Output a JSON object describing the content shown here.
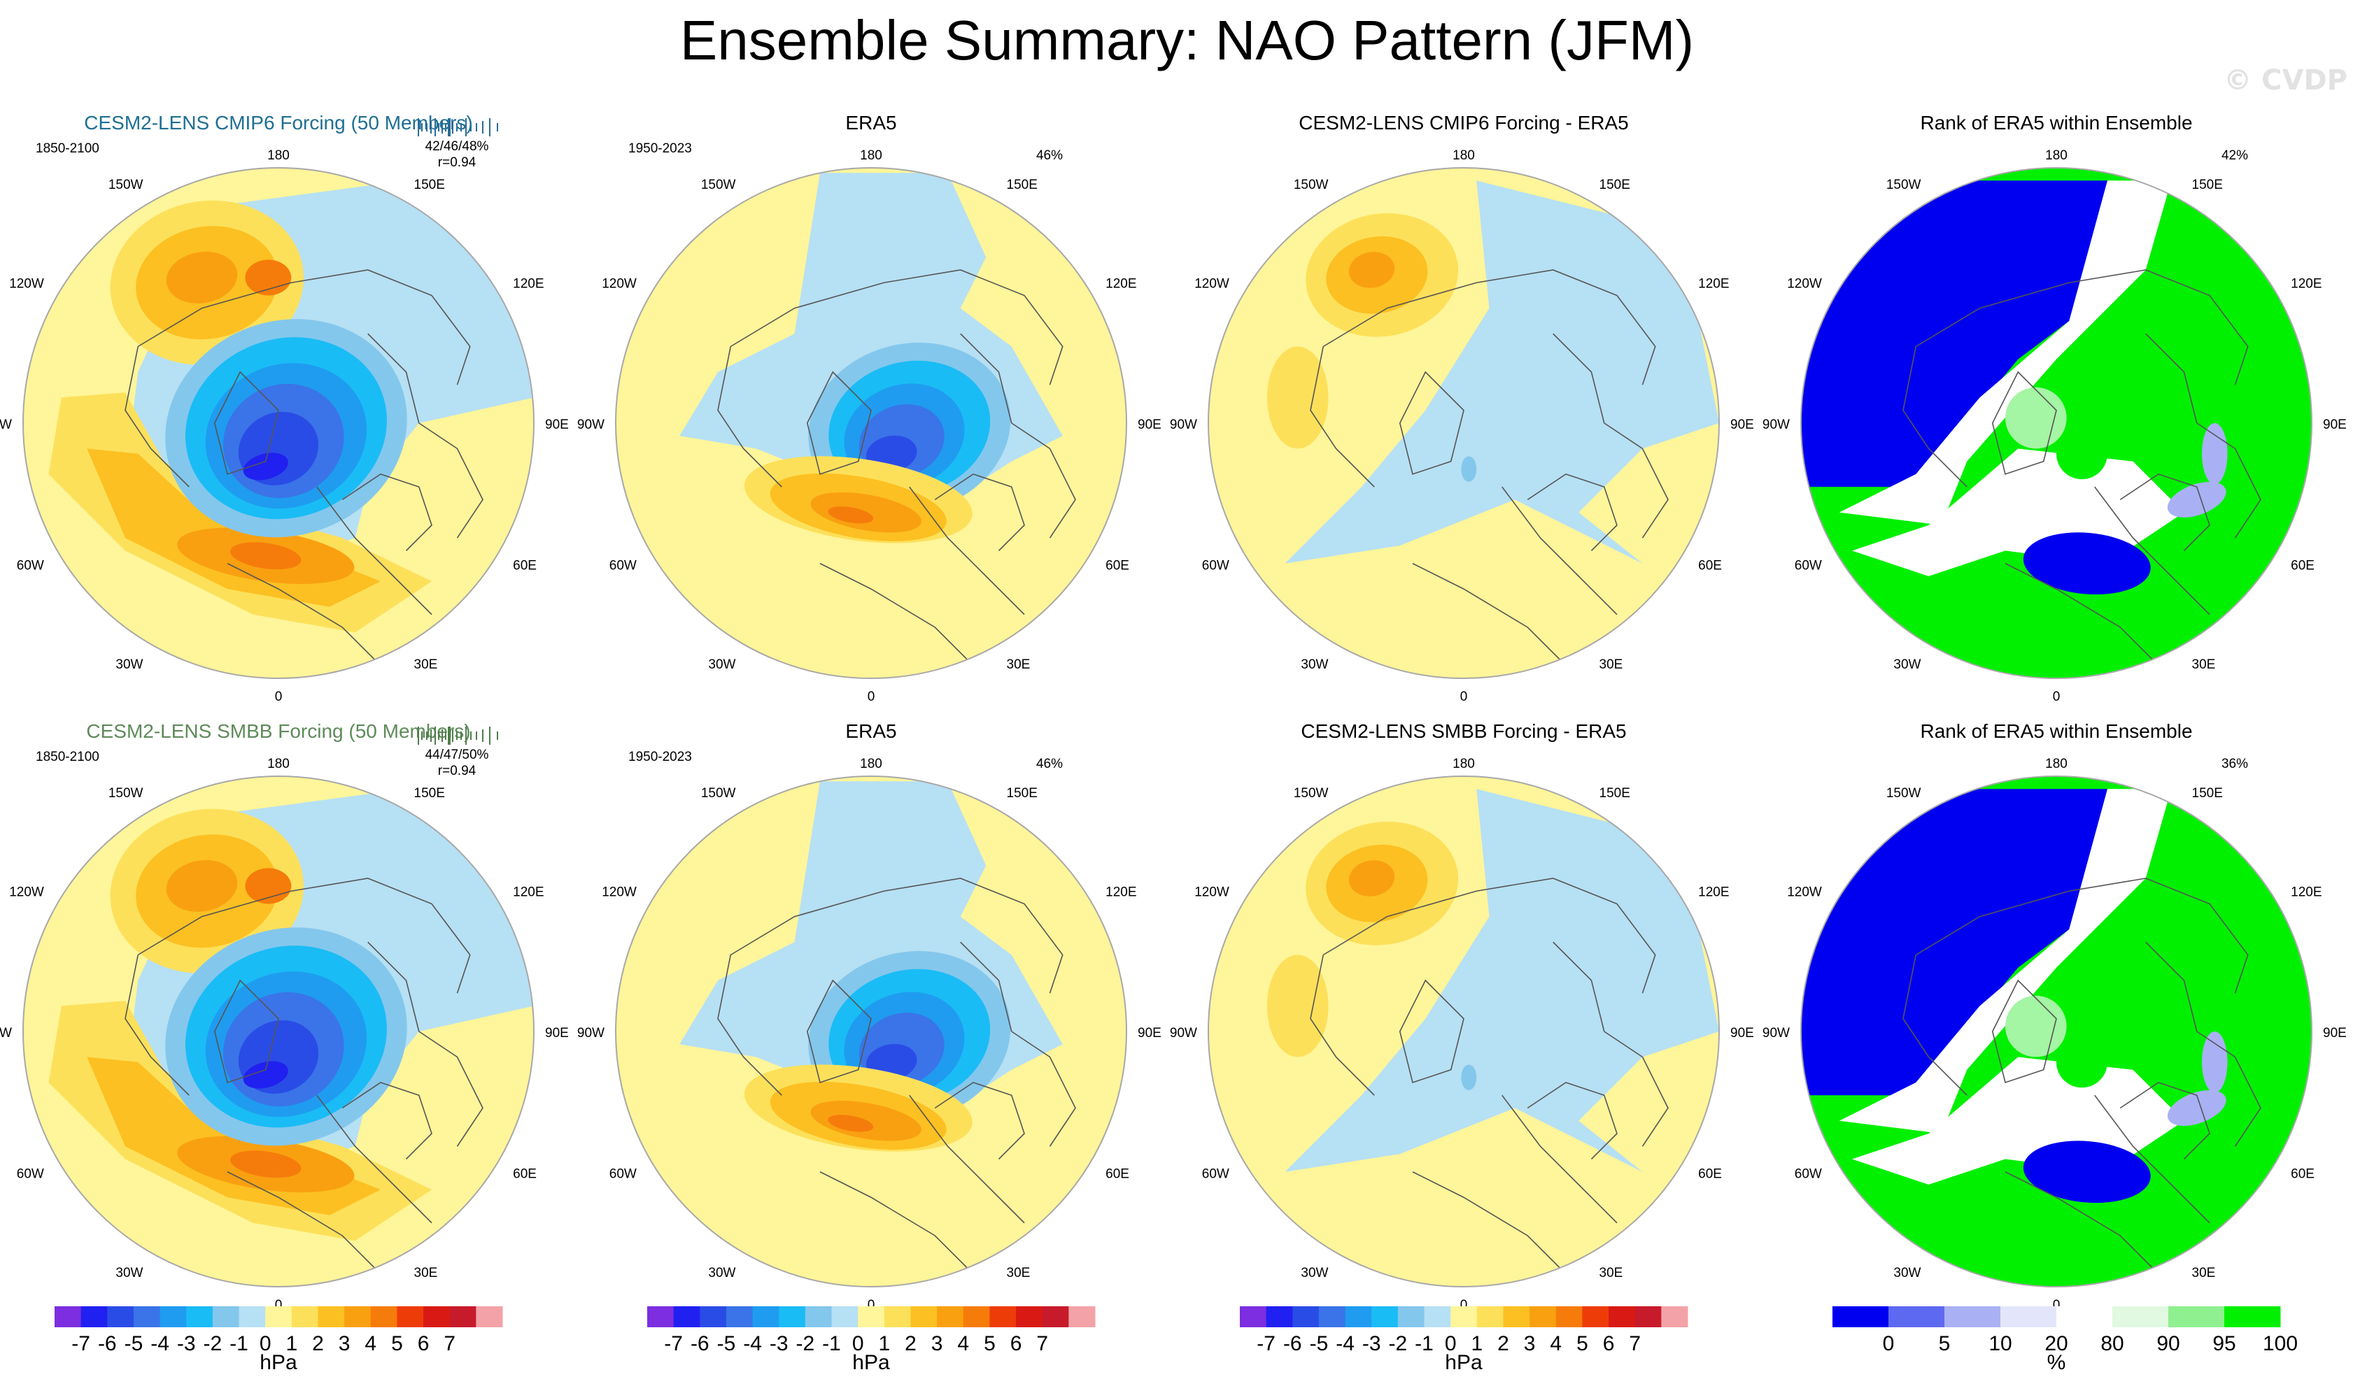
{
  "figure": {
    "title": "Ensemble Summary: NAO Pattern (JFM)",
    "watermark": "© CVDP"
  },
  "chart_data": [
    {
      "type": "heatmap",
      "row": 1,
      "col": 1,
      "title": "CESM2-LENS CMIP6 Forcing (50 Members)",
      "title_color": "#1f6f93",
      "period": "1850-2100",
      "stats": [
        "42/46/48%",
        "r=0.94"
      ],
      "rug_color": "#2b6d96",
      "variant": "ens_a",
      "colorbar": "hpa"
    },
    {
      "type": "heatmap",
      "row": 1,
      "col": 2,
      "title": "ERA5",
      "title_color": "#000000",
      "period": "1950-2023",
      "stats": [
        "46%"
      ],
      "variant": "obs",
      "colorbar": "hpa"
    },
    {
      "type": "heatmap",
      "row": 1,
      "col": 3,
      "title": "CESM2-LENS CMIP6 Forcing - ERA5",
      "title_color": "#000000",
      "period": "",
      "stats": [],
      "variant": "diff_a",
      "colorbar": "hpa"
    },
    {
      "type": "heatmap",
      "row": 1,
      "col": 4,
      "title": "Rank of ERA5 within Ensemble",
      "title_color": "#000000",
      "period": "",
      "stats": [
        "42%"
      ],
      "variant": "rank",
      "colorbar": "rank"
    },
    {
      "type": "heatmap",
      "row": 2,
      "col": 1,
      "title": "CESM2-LENS SMBB Forcing (50 Members)",
      "title_color": "#5e8a5a",
      "period": "1850-2100",
      "stats": [
        "44/47/50%",
        "r=0.94"
      ],
      "rug_color": "#4f7d4b",
      "variant": "ens_b",
      "colorbar": "hpa"
    },
    {
      "type": "heatmap",
      "row": 2,
      "col": 2,
      "title": "ERA5",
      "title_color": "#000000",
      "period": "1950-2023",
      "stats": [
        "46%"
      ],
      "variant": "obs",
      "colorbar": "hpa"
    },
    {
      "type": "heatmap",
      "row": 2,
      "col": 3,
      "title": "CESM2-LENS SMBB Forcing - ERA5",
      "title_color": "#000000",
      "period": "",
      "stats": [],
      "variant": "diff_b",
      "colorbar": "hpa"
    },
    {
      "type": "heatmap",
      "row": 2,
      "col": 4,
      "title": "Rank of ERA5 within Ensemble",
      "title_color": "#000000",
      "period": "",
      "stats": [
        "36%"
      ],
      "variant": "rank",
      "colorbar": "rank"
    }
  ],
  "map_labels": {
    "top": "180",
    "bottom": "0",
    "left": "90W",
    "right": "90E",
    "upper_left": [
      "150W",
      "120W"
    ],
    "upper_right": [
      "150E",
      "120E"
    ],
    "lower_left": [
      "60W",
      "30W"
    ],
    "lower_right": [
      "60E",
      "30E"
    ]
  },
  "colorbars": {
    "hpa": {
      "unit": "hPa",
      "colors": [
        "#7d2ee0",
        "#2020f0",
        "#2a4ce6",
        "#3a74e8",
        "#1f9cf0",
        "#1abcf5",
        "#84c7ec",
        "#b6e0f4",
        "#fff59a",
        "#fde05a",
        "#fcc022",
        "#f9a011",
        "#f57c0a",
        "#ee3c08",
        "#d91a14",
        "#c71b2b",
        "#f3a3a8"
      ],
      "tick_labels": [
        "-7",
        "-6",
        "-5",
        "-4",
        "-3",
        "-2",
        "-1",
        "0",
        "1",
        "2",
        "3",
        "4",
        "5",
        "6",
        "7"
      ]
    },
    "rank": {
      "unit": "%",
      "colors": [
        "#0000f0",
        "#5d69f0",
        "#a9b1f4",
        "#e3e6fa",
        "#ffffff",
        "#e1f9e1",
        "#8ff08f",
        "#00f000"
      ],
      "tick_labels": [
        "0",
        "5",
        "10",
        "20",
        "80",
        "90",
        "95",
        "100"
      ]
    }
  },
  "palette": {
    "neg_fill": [
      "#b6e0f4",
      "#84c7ec",
      "#1abcf5",
      "#1f9cf0",
      "#3a74e8",
      "#2a4ce6",
      "#2020f0"
    ],
    "pos_fill": [
      "#fff59a",
      "#fde05a",
      "#fcc022",
      "#f9a011",
      "#f57c0a",
      "#ee3c08"
    ],
    "rank_fill": {
      "low": "#0000f0",
      "mid_low": "#a9b1f4",
      "white": "#ffffff",
      "mid_high": "#a4f5a4",
      "high": "#00f000"
    },
    "outline": "#a8a8a8",
    "coast": "#555555"
  }
}
